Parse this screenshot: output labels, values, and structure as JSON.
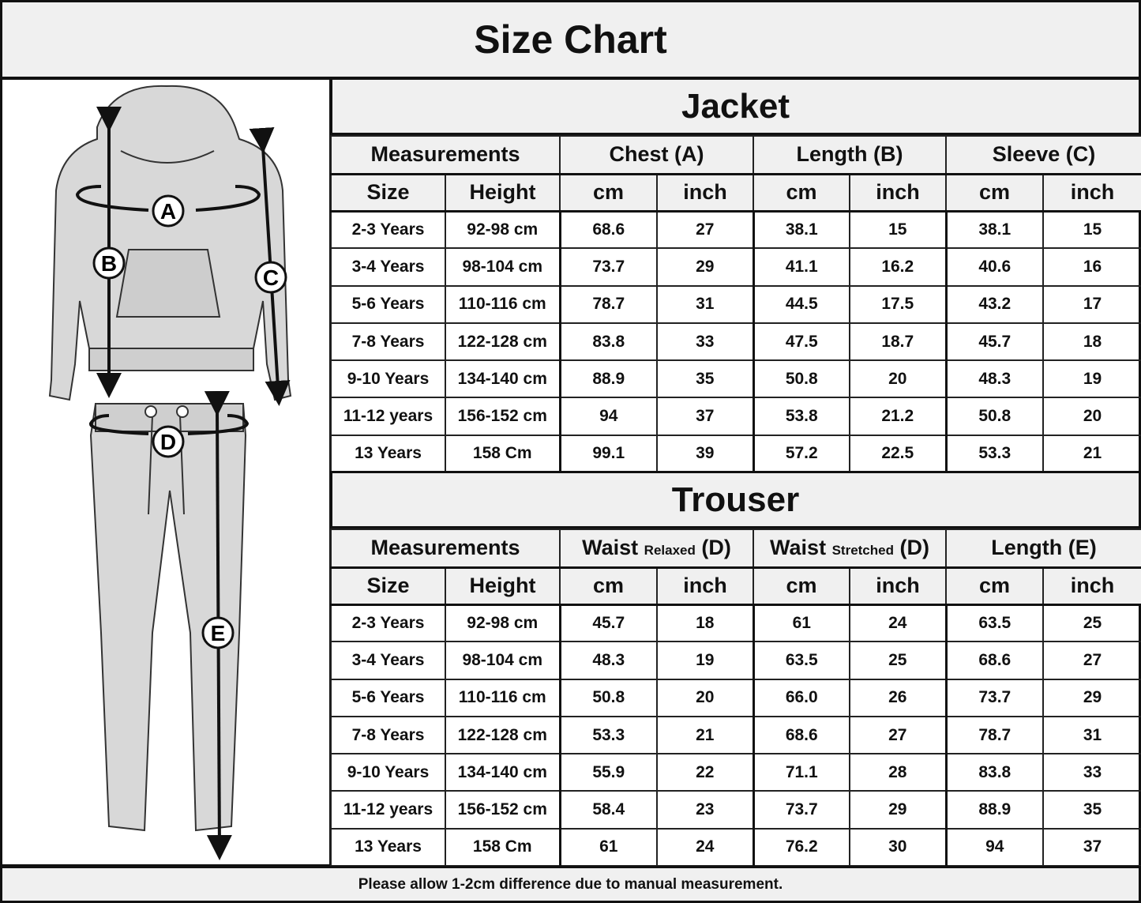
{
  "title": "Size Chart",
  "illustration": {
    "labels": [
      "A",
      "B",
      "C",
      "D",
      "E"
    ]
  },
  "jacket": {
    "title": "Jacket",
    "groups": [
      "Measurements",
      "Chest (A)",
      "Length (B)",
      "Sleeve (C)"
    ],
    "subheaders": [
      "Size",
      "Height",
      "cm",
      "inch",
      "cm",
      "inch",
      "cm",
      "inch"
    ],
    "rows": [
      [
        "2-3 Years",
        "92-98 cm",
        "68.6",
        "27",
        "38.1",
        "15",
        "38.1",
        "15"
      ],
      [
        "3-4 Years",
        "98-104 cm",
        "73.7",
        "29",
        "41.1",
        "16.2",
        "40.6",
        "16"
      ],
      [
        "5-6 Years",
        "110-116 cm",
        "78.7",
        "31",
        "44.5",
        "17.5",
        "43.2",
        "17"
      ],
      [
        "7-8 Years",
        "122-128 cm",
        "83.8",
        "33",
        "47.5",
        "18.7",
        "45.7",
        "18"
      ],
      [
        "9-10 Years",
        "134-140 cm",
        "88.9",
        "35",
        "50.8",
        "20",
        "48.3",
        "19"
      ],
      [
        "11-12 years",
        "156-152 cm",
        "94",
        "37",
        "53.8",
        "21.2",
        "50.8",
        "20"
      ],
      [
        "13 Years",
        "158 Cm",
        "99.1",
        "39",
        "57.2",
        "22.5",
        "53.3",
        "21"
      ]
    ]
  },
  "trouser": {
    "title": "Trouser",
    "groups": [
      {
        "main": "Measurements"
      },
      {
        "main": "Waist",
        "small": "Relaxed",
        "suffix": "(D)"
      },
      {
        "main": "Waist",
        "small": "Stretched",
        "suffix": "(D)"
      },
      {
        "main": "Length (E)"
      }
    ],
    "subheaders": [
      "Size",
      "Height",
      "cm",
      "inch",
      "cm",
      "inch",
      "cm",
      "inch"
    ],
    "rows": [
      [
        "2-3 Years",
        "92-98 cm",
        "45.7",
        "18",
        "61",
        "24",
        "63.5",
        "25"
      ],
      [
        "3-4 Years",
        "98-104 cm",
        "48.3",
        "19",
        "63.5",
        "25",
        "68.6",
        "27"
      ],
      [
        "5-6 Years",
        "110-116 cm",
        "50.8",
        "20",
        "66.0",
        "26",
        "73.7",
        "29"
      ],
      [
        "7-8 Years",
        "122-128 cm",
        "53.3",
        "21",
        "68.6",
        "27",
        "78.7",
        "31"
      ],
      [
        "9-10 Years",
        "134-140 cm",
        "55.9",
        "22",
        "71.1",
        "28",
        "83.8",
        "33"
      ],
      [
        "11-12 years",
        "156-152 cm",
        "58.4",
        "23",
        "73.7",
        "29",
        "88.9",
        "35"
      ],
      [
        "13 Years",
        "158 Cm",
        "61",
        "24",
        "76.2",
        "30",
        "94",
        "37"
      ]
    ]
  },
  "footer": "Please allow 1-2cm difference due to manual measurement."
}
